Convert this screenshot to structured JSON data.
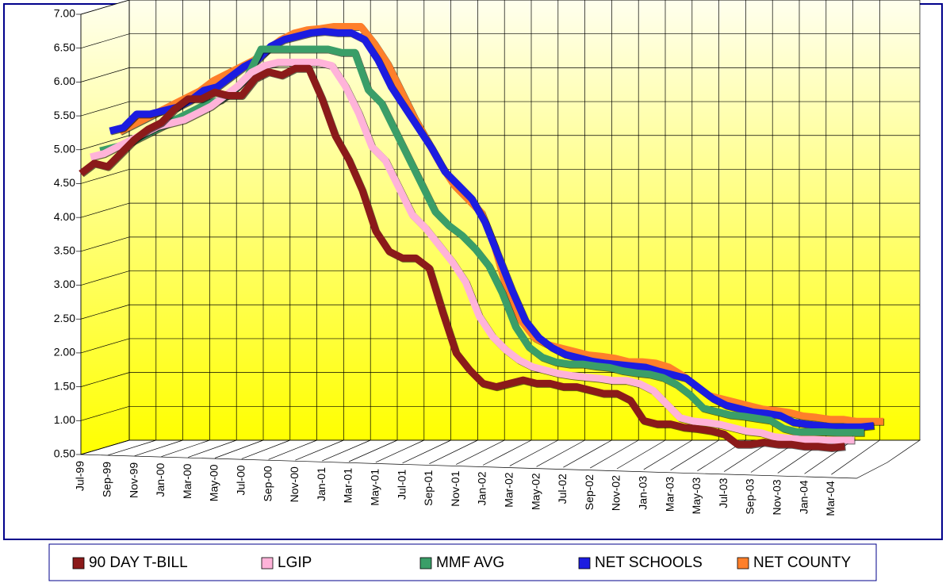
{
  "chart_data": {
    "type": "line3d",
    "categories": [
      "Jul-99",
      null,
      "Sep-99",
      null,
      "Nov-99",
      null,
      "Jan-00",
      null,
      "Mar-00",
      null,
      "May-00",
      null,
      "Jul-00",
      null,
      "Sep-00",
      null,
      "Nov-00",
      null,
      "Jan-01",
      null,
      "Mar-01",
      null,
      "May-01",
      null,
      "Jul-01",
      null,
      "Sep-01",
      null,
      "Nov-01",
      null,
      "Jan-02",
      null,
      "Mar-02",
      null,
      "May-02",
      null,
      "Jul-02",
      null,
      "Sep-02",
      null,
      "Nov-02",
      null,
      "Jan-03",
      null,
      "Mar-03",
      null,
      "May-03",
      null,
      "Jul-03",
      null,
      "Sep-03",
      null,
      "Nov-03",
      null,
      "Jan-04",
      null,
      "Mar-04",
      null
    ],
    "series": [
      {
        "name": "90 DAY T-BILL",
        "color": "#8b1a1a",
        "values": [
          4.65,
          4.8,
          4.75,
          4.95,
          5.15,
          5.3,
          5.4,
          5.6,
          5.75,
          5.75,
          5.85,
          5.8,
          5.8,
          6.05,
          6.15,
          6.1,
          6.2,
          6.2,
          5.75,
          5.2,
          4.85,
          4.4,
          3.8,
          3.5,
          3.4,
          3.4,
          3.25,
          2.6,
          2.0,
          1.75,
          1.55,
          1.5,
          1.55,
          1.6,
          1.55,
          1.55,
          1.5,
          1.5,
          1.45,
          1.4,
          1.4,
          1.3,
          1.0,
          0.95,
          0.95,
          0.9,
          0.88,
          0.85,
          0.8,
          0.65,
          0.65,
          0.68,
          0.65,
          0.65,
          0.62,
          0.62,
          0.6,
          0.62
        ]
      },
      {
        "name": "LGIP",
        "color": "#ffb3d9",
        "values": [
          4.85,
          4.9,
          5.0,
          5.1,
          5.2,
          5.3,
          5.35,
          5.4,
          5.5,
          5.6,
          5.75,
          5.9,
          6.1,
          6.2,
          6.25,
          6.25,
          6.25,
          6.25,
          6.2,
          5.9,
          5.5,
          5.0,
          4.8,
          4.4,
          4.0,
          3.8,
          3.55,
          3.3,
          3.0,
          2.5,
          2.2,
          2.0,
          1.85,
          1.75,
          1.7,
          1.65,
          1.62,
          1.6,
          1.58,
          1.55,
          1.55,
          1.5,
          1.4,
          1.2,
          1.0,
          0.95,
          0.93,
          0.9,
          0.85,
          0.8,
          0.78,
          0.72,
          0.7,
          0.68,
          0.68,
          0.67,
          0.67,
          0.67
        ]
      },
      {
        "name": "MMF AVG",
        "color": "#3a9e68",
        "values": [
          4.9,
          4.95,
          5.0,
          5.1,
          5.2,
          5.3,
          5.4,
          5.5,
          5.6,
          5.65,
          5.8,
          6.0,
          6.4,
          6.4,
          6.4,
          6.4,
          6.4,
          6.4,
          6.35,
          6.35,
          5.8,
          5.6,
          5.2,
          4.8,
          4.4,
          4.0,
          3.8,
          3.65,
          3.45,
          3.2,
          2.8,
          2.3,
          2.0,
          1.85,
          1.78,
          1.75,
          1.75,
          1.72,
          1.7,
          1.65,
          1.62,
          1.6,
          1.55,
          1.45,
          1.3,
          1.1,
          1.05,
          1.0,
          0.98,
          0.95,
          0.92,
          0.8,
          0.75,
          0.75,
          0.75,
          0.74,
          0.74,
          0.74
        ]
      },
      {
        "name": "NET SCHOOLS",
        "color": "#1c1ce0",
        "values": [
          5.15,
          5.2,
          5.4,
          5.4,
          5.45,
          5.5,
          5.6,
          5.75,
          5.8,
          5.95,
          6.1,
          6.2,
          6.4,
          6.5,
          6.55,
          6.6,
          6.62,
          6.6,
          6.6,
          6.5,
          6.2,
          5.8,
          5.5,
          5.2,
          4.9,
          4.55,
          4.35,
          4.15,
          3.8,
          3.3,
          2.8,
          2.35,
          2.1,
          1.95,
          1.85,
          1.8,
          1.75,
          1.72,
          1.7,
          1.68,
          1.66,
          1.6,
          1.55,
          1.5,
          1.35,
          1.2,
          1.1,
          1.05,
          1.0,
          0.98,
          0.95,
          0.85,
          0.82,
          0.8,
          0.78,
          0.78,
          0.78,
          0.8
        ]
      },
      {
        "name": "NET COUNTY",
        "color": "#ff7f2a",
        "values": [
          5.1,
          5.2,
          5.3,
          5.4,
          5.5,
          5.6,
          5.7,
          5.85,
          5.95,
          6.05,
          6.15,
          6.3,
          6.45,
          6.55,
          6.6,
          6.62,
          6.65,
          6.65,
          6.65,
          6.4,
          6.1,
          5.7,
          5.3,
          4.95,
          4.6,
          4.3,
          4.1,
          3.9,
          3.4,
          2.7,
          2.3,
          2.05,
          1.95,
          1.9,
          1.85,
          1.8,
          1.78,
          1.75,
          1.7,
          1.7,
          1.68,
          1.62,
          1.5,
          1.35,
          1.2,
          1.15,
          1.1,
          1.05,
          1.0,
          0.98,
          0.95,
          0.9,
          0.88,
          0.85,
          0.85,
          0.82,
          0.82,
          0.82
        ]
      }
    ],
    "ylim": [
      0.5,
      7.0
    ],
    "yticks": [
      {
        "value": 0.5,
        "label": "0.50"
      },
      {
        "value": 1.0,
        "label": "1.00"
      },
      {
        "value": 1.5,
        "label": "1.50"
      },
      {
        "value": 2.0,
        "label": "2.00"
      },
      {
        "value": 2.5,
        "label": "2.50"
      },
      {
        "value": 3.0,
        "label": "3.00"
      },
      {
        "value": 3.5,
        "label": "3.50"
      },
      {
        "value": 4.0,
        "label": "4.00"
      },
      {
        "value": 4.5,
        "label": "4.50"
      },
      {
        "value": 5.0,
        "label": "5.00"
      },
      {
        "value": 5.5,
        "label": "5.50"
      },
      {
        "value": 6.0,
        "label": "6.00"
      },
      {
        "value": 6.5,
        "label": "6.50"
      },
      {
        "value": 7.0,
        "label": "7.00"
      }
    ],
    "grid": true,
    "legend": "bottom"
  }
}
